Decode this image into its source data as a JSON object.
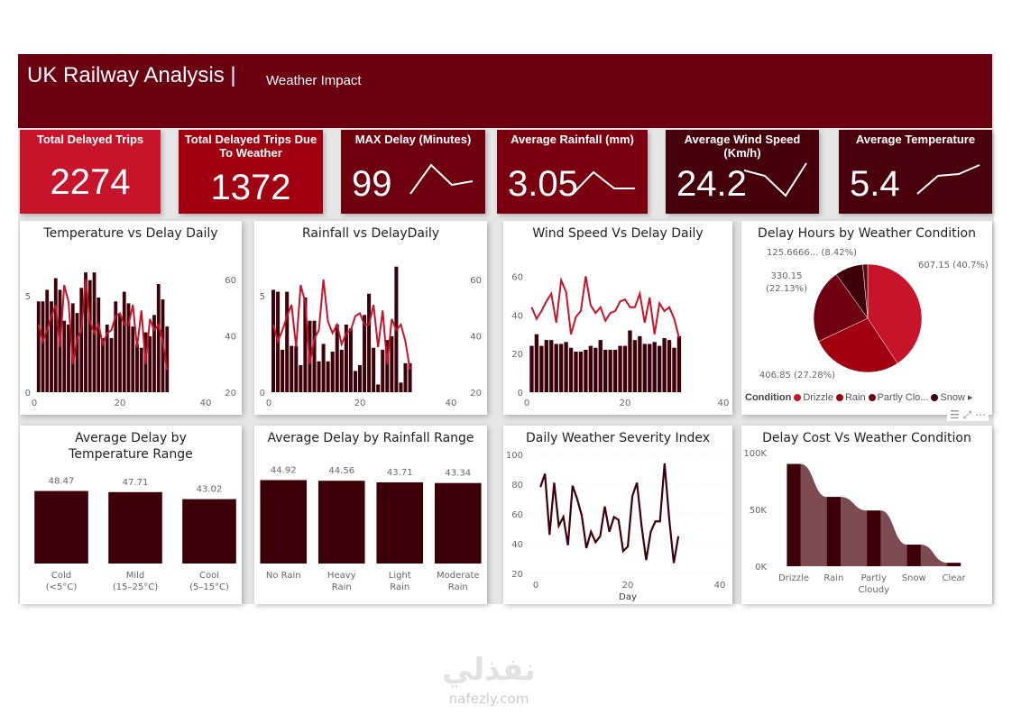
{
  "header": {
    "title": "UK Railway Analysis |",
    "subtitle": "Weather Impact"
  },
  "kpis": [
    {
      "label": "Total Delayed Trips",
      "value": "2274",
      "color": "#c8142a"
    },
    {
      "label": "Total Delayed Trips Due To Weather",
      "value": "1372",
      "color": "#a0000f"
    },
    {
      "label": "MAX Delay (Minutes)",
      "value": "99",
      "color": "#6e0010",
      "spark": [
        0.1,
        0.9,
        0.35,
        0.45
      ]
    },
    {
      "label": "Average Rainfall (mm)",
      "value": "3.05",
      "color": "#7a0010",
      "spark": [
        0.1,
        0.7,
        0.25,
        0.25
      ]
    },
    {
      "label": "Average Wind Speed (Km/h)",
      "value": "24.2",
      "color": "#45000c",
      "spark": [
        0.75,
        0.6,
        0.05,
        0.95
      ]
    },
    {
      "label": "Average Temperature",
      "value": "5.4",
      "color": "#4a000c",
      "spark": [
        0.1,
        0.6,
        0.65,
        0.9
      ]
    }
  ],
  "colors": {
    "bar": "#3d0009",
    "line": "#c8142a",
    "area": "#7d4b52"
  },
  "chart_data": [
    {
      "type": "bar+line",
      "title": "Temperature vs Delay Daily",
      "x": [
        1,
        2,
        3,
        4,
        5,
        6,
        7,
        8,
        9,
        10,
        11,
        12,
        13,
        14,
        15,
        16,
        17,
        18,
        19,
        20,
        21,
        22,
        23,
        24,
        25,
        26,
        27,
        28,
        29,
        30,
        31
      ],
      "bars": [
        4.7,
        4.7,
        5.3,
        4.7,
        5.9,
        5.3,
        3.7,
        3.5,
        4.6,
        4.1,
        5.4,
        6.2,
        5.8,
        6.2,
        4.9,
        2.8,
        3.5,
        2.8,
        4.7,
        4.0,
        5.2,
        4.6,
        3.4,
        2.5,
        2.3,
        3.1,
        2.9,
        4.0,
        5.6,
        4.8,
        3.4
      ],
      "line": [
        44,
        38,
        42,
        47,
        51,
        36,
        58,
        52,
        30,
        39,
        42,
        60,
        45,
        41,
        44,
        37,
        41,
        42,
        47,
        48,
        44,
        44,
        51,
        36,
        49,
        30,
        46,
        42,
        44,
        38,
        28
      ],
      "xticks": [
        "0",
        "20",
        "40"
      ],
      "xlim": [
        0,
        40
      ],
      "yticks_left": [
        "0",
        "5"
      ],
      "ylim_left": [
        0,
        7
      ],
      "yticks_right": [
        "20",
        "40",
        "60"
      ],
      "ylim_right": [
        20,
        68
      ]
    },
    {
      "type": "bar+line",
      "title": "Rainfall vs DelayDaily",
      "x": [
        1,
        2,
        3,
        4,
        5,
        6,
        7,
        8,
        9,
        10,
        11,
        12,
        13,
        14,
        15,
        16,
        17,
        18,
        19,
        20,
        21,
        22,
        23,
        24,
        25,
        26,
        27,
        28,
        29,
        30,
        31
      ],
      "bars": [
        5.3,
        5.2,
        2.2,
        5.2,
        2.4,
        2.4,
        1.4,
        4.9,
        3.7,
        3.7,
        1.6,
        2.5,
        1.6,
        2.1,
        3.5,
        2.2,
        3.5,
        3.3,
        1.1,
        1.4,
        4.0,
        5.1,
        2.3,
        0.4,
        2.2,
        2.7,
        2.9,
        6.5,
        0.5,
        1.5,
        1.5
      ],
      "line": [
        44,
        38,
        42,
        47,
        51,
        36,
        58,
        52,
        30,
        39,
        42,
        60,
        45,
        41,
        44,
        37,
        41,
        42,
        47,
        48,
        44,
        44,
        51,
        36,
        49,
        30,
        46,
        42,
        44,
        38,
        28
      ],
      "xticks": [
        "0",
        "20",
        "40"
      ],
      "xlim": [
        0,
        40
      ],
      "yticks_left": [
        "0",
        "5"
      ],
      "ylim_left": [
        0,
        7
      ],
      "yticks_right": [
        "20",
        "40",
        "60"
      ],
      "ylim_right": [
        20,
        68
      ]
    },
    {
      "type": "bar+line",
      "title": "Wind Speed Vs Delay Daily",
      "x": [
        1,
        2,
        3,
        4,
        5,
        6,
        7,
        8,
        9,
        10,
        11,
        12,
        13,
        14,
        15,
        16,
        17,
        18,
        19,
        20,
        21,
        22,
        23,
        24,
        25,
        26,
        27,
        28,
        29,
        30,
        31
      ],
      "bars": [
        24,
        30,
        24,
        27,
        27,
        25,
        25,
        26,
        23,
        21,
        21,
        22,
        24,
        23,
        27,
        22,
        22,
        22,
        24,
        24,
        32,
        27,
        29,
        25,
        25,
        26,
        24,
        28,
        27,
        23,
        29
      ],
      "line": [
        44,
        38,
        42,
        47,
        51,
        36,
        58,
        52,
        30,
        39,
        42,
        60,
        45,
        41,
        44,
        37,
        41,
        42,
        47,
        48,
        44,
        44,
        51,
        36,
        49,
        30,
        46,
        42,
        44,
        38,
        28
      ],
      "xticks": [
        "0",
        "20",
        "40"
      ],
      "xlim": [
        0,
        40
      ],
      "yticks_left": [
        "0",
        "20",
        "40",
        "60"
      ],
      "ylim_left": [
        0,
        70
      ]
    },
    {
      "type": "pie",
      "title": "Delay Hours by Weather Condition",
      "legend_title": "Condition",
      "slices": [
        {
          "name": "Drizzle",
          "value": 607.15,
          "label": "607.15 (40.7%)",
          "color": "#c8142a"
        },
        {
          "name": "Rain",
          "value": 406.85,
          "label": "406.85 (27.28%)",
          "color": "#a0000f"
        },
        {
          "name": "Partly Clo...",
          "value": 330.15,
          "label": "330.15 (22.13%)",
          "color": "#6e0010"
        },
        {
          "name": "Snow",
          "value": 125.6666,
          "label": "125.6666... (8.42%)",
          "color": "#3d0009"
        },
        {
          "name": "",
          "value": 21.9,
          "label": "",
          "color": "#5a0a10"
        }
      ]
    },
    {
      "type": "bar",
      "title": "Average Delay by Temperature Range",
      "categories": [
        "Cold (<5°C)",
        "Mild (15–25°C)",
        "Cool (5–15°C)"
      ],
      "values": [
        48.47,
        47.71,
        43.02
      ]
    },
    {
      "type": "bar",
      "title": "Average Delay by Rainfall Range",
      "categories": [
        "No Rain",
        "Heavy Rain",
        "Light Rain",
        "Moderate Rain"
      ],
      "values": [
        44.92,
        44.56,
        43.71,
        43.34
      ]
    },
    {
      "type": "line",
      "title": "Daily Weather Severity Index",
      "xlabel": "Day",
      "x": [
        1,
        2,
        3,
        4,
        5,
        6,
        7,
        8,
        9,
        10,
        11,
        12,
        13,
        14,
        15,
        16,
        17,
        18,
        19,
        20,
        21,
        22,
        23,
        24,
        25,
        26,
        27,
        28,
        29,
        30,
        31
      ],
      "values": [
        78,
        87,
        46,
        81,
        52,
        58,
        39,
        79,
        70,
        59,
        37,
        48,
        41,
        45,
        65,
        48,
        58,
        56,
        35,
        38,
        72,
        81,
        52,
        29,
        48,
        55,
        55,
        94,
        57,
        27,
        45
      ],
      "xticks": [
        "0",
        "20",
        "40"
      ],
      "xlim": [
        0,
        40
      ],
      "yticks": [
        "20",
        "40",
        "60",
        "80",
        "100"
      ],
      "ylim": [
        20,
        100
      ]
    },
    {
      "type": "ribbon",
      "title": "Delay Cost Vs Weather Condition",
      "categories": [
        "Drizzle",
        "Rain",
        "Partly Cloudy",
        "Snow",
        "Clear"
      ],
      "values": [
        90000,
        61000,
        49000,
        19000,
        3000
      ],
      "yticks": [
        "0K",
        "50K",
        "100K"
      ],
      "ylim": [
        0,
        100000
      ]
    }
  ],
  "watermark": {
    "arabic": "نفذلي",
    "latin": "nafezly.com"
  }
}
